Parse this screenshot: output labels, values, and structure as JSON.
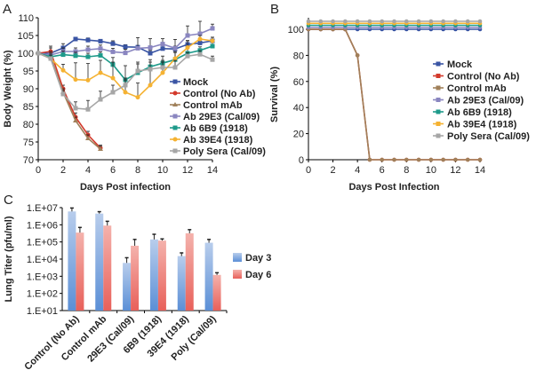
{
  "chart_data": [
    {
      "panel": "A",
      "type": "line",
      "xlabel": "Days Post infection",
      "ylabel": "Body Weight (%)",
      "xlim": [
        0,
        14
      ],
      "ylim": [
        70,
        110
      ],
      "xticks": [
        0,
        2,
        4,
        6,
        8,
        10,
        12,
        14
      ],
      "yticks": [
        70,
        75,
        80,
        85,
        90,
        95,
        100,
        105,
        110
      ],
      "legend": "right",
      "grid": false,
      "series": [
        {
          "name": "Mock",
          "color": "#3a55a4",
          "marker": "square",
          "x": [
            0,
            1,
            2,
            3,
            4,
            5,
            6,
            7,
            8,
            9,
            10,
            11,
            12,
            13,
            14
          ],
          "values": [
            100,
            100,
            101.5,
            104,
            103.7,
            103.4,
            102.7,
            101.8,
            101.7,
            100,
            101.3,
            101.2,
            102.5,
            102.9,
            103.5
          ],
          "err": [
            0,
            1.5,
            1.2,
            0.5,
            0.6,
            0.5,
            0.8,
            0.6,
            0.5,
            0.8,
            0.8,
            0.8,
            1,
            1.2,
            1
          ]
        },
        {
          "name": "Control (No Ab)",
          "color": "#d33a2c",
          "marker": "circle",
          "x": [
            0,
            1,
            2,
            3,
            4,
            5
          ],
          "values": [
            100,
            100.5,
            90,
            82,
            77,
            73.3
          ],
          "err": [
            0,
            1.5,
            1,
            1.2,
            1,
            0.8
          ]
        },
        {
          "name": "Control mAb",
          "color": "#a0805a",
          "marker": "triangle",
          "x": [
            0,
            1,
            2,
            3,
            4,
            5
          ],
          "values": [
            100,
            99,
            89,
            81,
            76,
            73
          ],
          "err": [
            0,
            1,
            1,
            1,
            1,
            0.8
          ]
        },
        {
          "name": "Ab 29E3 (Cal/09)",
          "color": "#8a86c0",
          "marker": "square",
          "x": [
            0,
            1,
            2,
            3,
            4,
            5,
            6,
            7,
            8,
            9,
            10,
            11,
            12,
            13,
            14
          ],
          "values": [
            100,
            99.5,
            100.5,
            100.5,
            101,
            101.3,
            100.4,
            100.1,
            101.4,
            101.6,
            102.6,
            101.4,
            105,
            105.5,
            107
          ],
          "err": [
            0,
            1,
            1,
            1,
            1,
            1,
            1,
            1,
            3,
            2.5,
            1.5,
            2.5,
            2.7,
            3.5,
            1.2
          ]
        },
        {
          "name": "Ab 6B9 (1918)",
          "color": "#1e9a8a",
          "marker": "square",
          "x": [
            0,
            1,
            2,
            3,
            4,
            5,
            6,
            7,
            8,
            9,
            10,
            11,
            12,
            13,
            14
          ],
          "values": [
            100,
            99,
            99.6,
            99.3,
            99,
            99.4,
            96.8,
            92.5,
            94.5,
            96.2,
            97.2,
            98.2,
            100,
            100.8,
            102
          ],
          "err": [
            0,
            1,
            1,
            1,
            1,
            1,
            2,
            4,
            3,
            2,
            2,
            2,
            1.5,
            1,
            1.2
          ]
        },
        {
          "name": "Ab 39E4 (1918)",
          "color": "#f5b232",
          "marker": "circle",
          "x": [
            0,
            1,
            2,
            3,
            4,
            5,
            6,
            7,
            8,
            9,
            10,
            11,
            12,
            13,
            14
          ],
          "values": [
            100,
            98.5,
            95.2,
            92.6,
            92.4,
            94.5,
            93,
            89,
            87.6,
            91,
            94.5,
            98.5,
            101.6,
            104,
            103.5
          ],
          "err": [
            0,
            1,
            1.7,
            4.7,
            4.7,
            3.5,
            4.5,
            3.5,
            4,
            5,
            3,
            2,
            2,
            1,
            1
          ]
        },
        {
          "name": "Poly Sera (Cal/09)",
          "color": "#a6a6a6",
          "marker": "square",
          "x": [
            0,
            1,
            2,
            3,
            4,
            5,
            6,
            7,
            8,
            9,
            10,
            11,
            12,
            13,
            14
          ],
          "values": [
            100,
            98.5,
            88.5,
            84.5,
            84.2,
            87,
            89,
            91,
            95,
            95.5,
            96,
            96,
            99.2,
            99.7,
            98.2
          ],
          "err": [
            0,
            1,
            1,
            1.8,
            2.5,
            2.3,
            2,
            2,
            2,
            2,
            2,
            2,
            1,
            1,
            1
          ]
        }
      ]
    },
    {
      "panel": "B",
      "type": "line",
      "xlabel": "Days Post Infection",
      "ylabel": "Survival (%)",
      "xlim": [
        0,
        14
      ],
      "ylim": [
        0,
        100
      ],
      "xticks": [
        0,
        2,
        4,
        6,
        8,
        10,
        12,
        14
      ],
      "yticks": [
        0,
        20,
        40,
        60,
        80,
        100
      ],
      "legend": "right",
      "grid": false,
      "series": [
        {
          "name": "Mock",
          "color": "#3a55a4",
          "values": [
            100,
            100,
            100,
            100,
            100,
            100,
            100,
            100,
            100,
            100,
            100,
            100,
            100,
            100,
            100
          ]
        },
        {
          "name": "Control (No Ab)",
          "color": "#d33a2c",
          "values": [
            100,
            100,
            100,
            100,
            80,
            0,
            0,
            0,
            0,
            0,
            0,
            0,
            0,
            0,
            0
          ]
        },
        {
          "name": "Control mAb",
          "color": "#a0805a",
          "values": [
            100,
            100,
            100,
            100,
            80,
            0,
            0,
            0,
            0,
            0,
            0,
            0,
            0,
            0,
            0
          ]
        },
        {
          "name": "Ab 29E3 (Cal/09)",
          "color": "#8a86c0",
          "values": [
            100,
            100,
            100,
            100,
            100,
            100,
            100,
            100,
            100,
            100,
            100,
            100,
            100,
            100,
            100
          ]
        },
        {
          "name": "Ab 6B9 (1918)",
          "color": "#1e9a8a",
          "values": [
            100,
            100,
            100,
            100,
            100,
            100,
            100,
            100,
            100,
            100,
            100,
            100,
            100,
            100,
            100
          ]
        },
        {
          "name": "Ab 39E4 (1918)",
          "color": "#f5b232",
          "values": [
            100,
            100,
            100,
            100,
            100,
            100,
            100,
            100,
            100,
            100,
            100,
            100,
            100,
            100,
            100
          ]
        },
        {
          "name": "Poly Sera (Cal/09)",
          "color": "#a6a6a6",
          "values": [
            100,
            100,
            100,
            100,
            100,
            100,
            100,
            100,
            100,
            100,
            100,
            100,
            100,
            100,
            100
          ]
        }
      ]
    },
    {
      "panel": "C",
      "type": "bar",
      "ylabel": "Lung Titer (pfu/ml)",
      "yscale": "log",
      "ylim": [
        10,
        10000000
      ],
      "yticks": [
        "1.E+01",
        "1.E+02",
        "1.E+03",
        "1.E+04",
        "1.E+05",
        "1.E+06",
        "1.E+07"
      ],
      "legend": "right",
      "categories": [
        "Control (No Ab)",
        "Control mAb",
        "29E3 (Cal/09)",
        "6B9 (1918)",
        "39E4 (1918)",
        "Poly (Cal/09)"
      ],
      "series": [
        {
          "name": "Day 3",
          "color": "#5b8fd6",
          "values": [
            6000000,
            4500000,
            6000,
            140000,
            15000,
            90000
          ],
          "err_high": [
            9500000,
            5800000,
            12000,
            280000,
            23000,
            140000
          ]
        },
        {
          "name": "Day 6",
          "color": "#e8605a",
          "values": [
            350000,
            900000,
            60000,
            120000,
            320000,
            1200
          ],
          "err_high": [
            700000,
            1600000,
            140000,
            150000,
            520000,
            1600
          ]
        }
      ]
    }
  ],
  "panels": {
    "a": "A",
    "b": "B",
    "c": "C"
  }
}
